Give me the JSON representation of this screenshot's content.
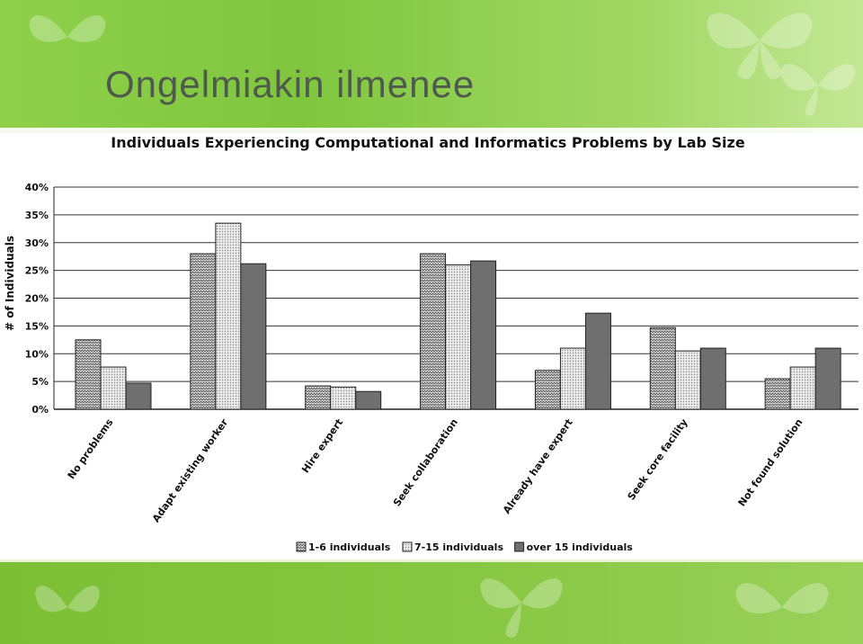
{
  "slide": {
    "title": "Ongelmiakin ilmenee"
  },
  "chart_data": {
    "type": "bar",
    "title": "Individuals Experiencing Computational and Informatics Problems by Lab Size",
    "xlabel": "",
    "ylabel": "# of Individuals",
    "ylim": [
      0,
      40
    ],
    "yticks": [
      0,
      5,
      10,
      15,
      20,
      25,
      30,
      35,
      40
    ],
    "ytick_suffix": "%",
    "grid": true,
    "legend_position": "bottom-center",
    "categories": [
      "No problems",
      "Adapt existing worker",
      "Hire expert",
      "Seek collaboration",
      "Already have expert",
      "Seek core facility",
      "Not found solution"
    ],
    "series": [
      {
        "name": "1-6 individuals",
        "values": [
          12.5,
          28,
          4.2,
          28,
          7,
          14.7,
          5.5
        ],
        "color": "#9a9a9a",
        "pattern": "zigzag"
      },
      {
        "name": "7-15 individuals",
        "values": [
          7.6,
          33.5,
          4,
          26,
          11,
          10.5,
          7.6
        ],
        "color": "#cfcfcf",
        "pattern": "dots"
      },
      {
        "name": "over 15 individuals",
        "values": [
          4.7,
          26.2,
          3.2,
          26.7,
          17.3,
          11,
          11
        ],
        "color": "#6f6f6f",
        "pattern": "solid"
      }
    ]
  }
}
